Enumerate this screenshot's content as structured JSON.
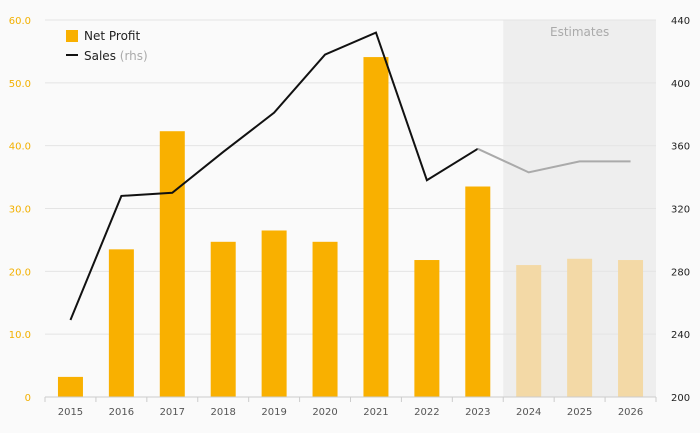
{
  "chart_data": {
    "type": "bar+line",
    "categories": [
      "2015",
      "2016",
      "2017",
      "2018",
      "2019",
      "2020",
      "2021",
      "2022",
      "2023",
      "2024",
      "2025",
      "2026"
    ],
    "estimate_from_index": 9,
    "estimates_label": "Estimates",
    "series": [
      {
        "name": "Net Profit",
        "type": "bar",
        "axis": "left",
        "values": [
          3.2,
          23.5,
          42.3,
          24.7,
          26.5,
          24.7,
          54.1,
          21.8,
          33.5,
          21.0,
          22.0,
          21.8
        ],
        "color": "#f9b000",
        "estimate_color": "#f3d9a6"
      },
      {
        "name": "Sales",
        "suffix": "(rhs)",
        "type": "line",
        "axis": "right",
        "values": [
          249,
          328,
          330,
          356,
          381,
          418,
          432,
          338,
          358,
          343,
          350,
          350
        ],
        "color": "#111111",
        "estimate_color": "#aaaaaa"
      }
    ],
    "y_left": {
      "min": 0,
      "max": 60,
      "ticks": [
        "0",
        "10.0",
        "20.0",
        "30.0",
        "40.0",
        "50.0",
        "60.0"
      ],
      "color": "#f2b000"
    },
    "y_right": {
      "min": 200,
      "max": 440,
      "ticks": [
        "200",
        "240",
        "280",
        "320",
        "360",
        "400",
        "440"
      ]
    },
    "grid": true,
    "legend": "top-left",
    "estimates_shading_color": "#eeeeee"
  }
}
